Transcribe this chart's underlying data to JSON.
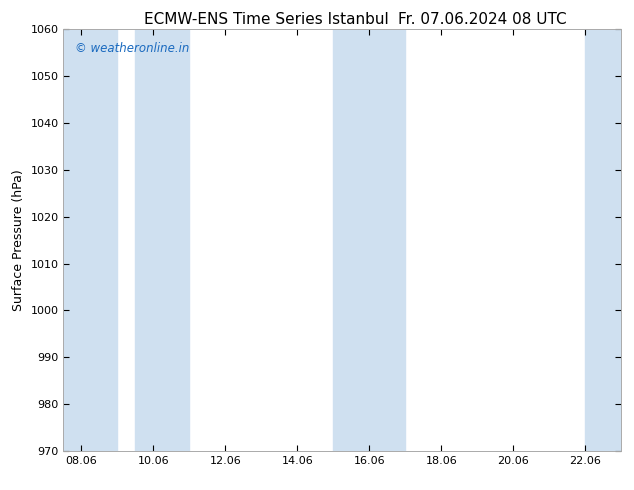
{
  "title_left": "ECMW-ENS Time Series Istanbul",
  "title_right": "Fr. 07.06.2024 08 UTC",
  "ylabel": "Surface Pressure (hPa)",
  "ylim": [
    970,
    1060
  ],
  "yticks": [
    970,
    980,
    990,
    1000,
    1010,
    1020,
    1030,
    1040,
    1050,
    1060
  ],
  "xlim_start": 7.5,
  "xlim_end": 23.0,
  "xtick_labels": [
    "08.06",
    "10.06",
    "12.06",
    "14.06",
    "16.06",
    "18.06",
    "20.06",
    "22.06"
  ],
  "xtick_positions": [
    8.0,
    10.0,
    12.0,
    14.0,
    16.0,
    18.0,
    20.0,
    22.0
  ],
  "shaded_bands": [
    {
      "xmin": 7.5,
      "xmax": 9.0
    },
    {
      "xmin": 9.5,
      "xmax": 11.0
    },
    {
      "xmin": 15.0,
      "xmax": 17.0
    },
    {
      "xmin": 22.0,
      "xmax": 23.0
    }
  ],
  "shade_color": "#cfe0f0",
  "bg_color": "#ffffff",
  "axes_bg_color": "#ffffff",
  "watermark_text": "© weatheronline.in",
  "watermark_color": "#1a6abf",
  "title_fontsize": 11,
  "label_fontsize": 9,
  "tick_fontsize": 8
}
